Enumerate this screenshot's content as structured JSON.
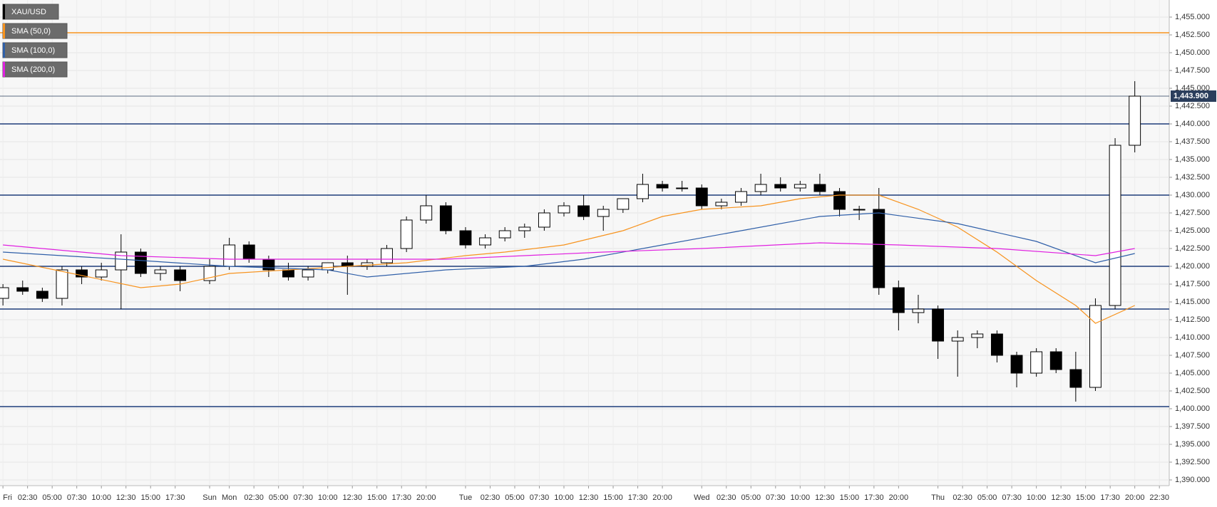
{
  "chart_data": {
    "type": "candlestick",
    "name": "XAU/USD",
    "up_color": "#ffffff",
    "down_color": "#000000",
    "x": [
      0,
      2,
      4,
      6,
      8,
      10,
      12,
      14,
      16,
      18,
      21,
      23,
      25,
      27,
      29,
      31,
      33,
      35,
      37,
      39,
      41,
      43,
      45,
      47,
      49,
      51,
      53,
      55,
      57,
      59,
      61,
      63,
      65,
      67,
      69,
      71,
      73,
      75,
      77,
      79,
      81,
      83,
      85,
      87,
      89,
      91,
      93,
      95,
      97,
      99,
      101,
      103,
      105,
      107,
      109,
      111,
      113,
      115
    ],
    "open": [
      1415.5,
      1417,
      1416.5,
      1415.5,
      1419.5,
      1418.5,
      1419.5,
      1422,
      1419,
      1419.5,
      1418,
      1420,
      1423,
      1421,
      1419.5,
      1418.5,
      1419.5,
      1420.5,
      1420,
      1420.5,
      1422.5,
      1426.5,
      1428.5,
      1425,
      1423,
      1424,
      1425,
      1425.5,
      1427.5,
      1428.5,
      1427,
      1428,
      1429.5,
      1431.5,
      1431,
      1431,
      1428.5,
      1429,
      1430.5,
      1431.5,
      1431,
      1431.5,
      1430.5,
      1428,
      1428,
      1417,
      1413.5,
      1414,
      1409.5,
      1410,
      1410.5,
      1407.5,
      1405,
      1408,
      1405.5,
      1403,
      1414.5,
      1437
    ],
    "high": [
      1417.5,
      1418,
      1417,
      1420,
      1420,
      1420.5,
      1424.5,
      1422.5,
      1420,
      1420,
      1421,
      1424,
      1423.5,
      1421.5,
      1420.5,
      1420,
      1420.5,
      1421.5,
      1421,
      1423,
      1427,
      1430,
      1429,
      1425.5,
      1424.5,
      1425.5,
      1426,
      1428,
      1429,
      1430,
      1428.5,
      1429.5,
      1433,
      1432,
      1432,
      1431.5,
      1429.5,
      1431,
      1433,
      1432.5,
      1432,
      1433,
      1431,
      1428.5,
      1431,
      1418,
      1416,
      1414.5,
      1411,
      1411,
      1411,
      1408,
      1408.5,
      1408.5,
      1408,
      1415.5,
      1438,
      1446
    ],
    "low": [
      1414.5,
      1416,
      1415,
      1414.5,
      1417.5,
      1418,
      1414,
      1418.5,
      1418,
      1416.5,
      1417.5,
      1419.5,
      1420.5,
      1418.5,
      1418,
      1418,
      1419,
      1416,
      1419.5,
      1420,
      1422,
      1426,
      1424.5,
      1422.5,
      1422.5,
      1423.5,
      1424,
      1425,
      1427,
      1426.5,
      1425,
      1427.5,
      1429,
      1430.5,
      1430.5,
      1428,
      1428,
      1428.5,
      1430,
      1430.5,
      1430.5,
      1430,
      1427,
      1426.5,
      1416,
      1411,
      1412,
      1407,
      1404.5,
      1408.5,
      1406.5,
      1403,
      1404.5,
      1405,
      1401,
      1402.5,
      1414,
      1436
    ],
    "close": [
      1417,
      1416.5,
      1415.5,
      1419.5,
      1418.5,
      1419.5,
      1422,
      1419,
      1419.5,
      1418,
      1420,
      1423,
      1421,
      1419.5,
      1418.5,
      1419.5,
      1420.5,
      1420,
      1420.5,
      1422.5,
      1426.5,
      1428.5,
      1425,
      1423,
      1424,
      1425,
      1425.5,
      1427.5,
      1428.5,
      1427,
      1428,
      1429.5,
      1431.5,
      1431,
      1431,
      1428.5,
      1429,
      1430.5,
      1431.5,
      1431,
      1431.5,
      1430.5,
      1428,
      1428,
      1417,
      1413.5,
      1414,
      1409.5,
      1410,
      1410.5,
      1407.5,
      1405,
      1408,
      1405.5,
      1403,
      1414.5,
      1437,
      1443.9
    ],
    "overlays": [
      {
        "name": "SMA (50,0)",
        "color": "#f7931e",
        "x": [
          0,
          14,
          18,
          23,
          29,
          35,
          41,
          47,
          51,
          57,
          63,
          67,
          71,
          77,
          81,
          85,
          89,
          93,
          97,
          101,
          105,
          109,
          111,
          115
        ],
        "values": [
          1421,
          1417,
          1417.5,
          1419,
          1419.5,
          1420,
          1420.5,
          1421.5,
          1422,
          1423,
          1425,
          1427,
          1428,
          1428.5,
          1429.5,
          1430,
          1430,
          1428,
          1425.5,
          1422,
          1418,
          1414.5,
          1412,
          1414.5
        ]
      },
      {
        "name": "SMA (100,0)",
        "color": "#2f5fa8",
        "x": [
          0,
          12,
          23,
          33,
          37,
          45,
          53,
          59,
          67,
          75,
          83,
          89,
          97,
          105,
          111,
          115
        ],
        "values": [
          1422,
          1421,
          1420,
          1419.5,
          1418.5,
          1419.5,
          1420,
          1421,
          1423,
          1425,
          1427,
          1427.5,
          1426,
          1423.5,
          1420.5,
          1421.8
        ]
      },
      {
        "name": "SMA (200,0)",
        "color": "#e020e0",
        "x": [
          0,
          12,
          23,
          37,
          45,
          53,
          61,
          71,
          83,
          91,
          101,
          111,
          115
        ],
        "values": [
          1423,
          1421.5,
          1421,
          1421,
          1421,
          1421.5,
          1422,
          1422.5,
          1423.3,
          1423,
          1422.5,
          1421.5,
          1422.5
        ]
      }
    ],
    "hlines": [
      {
        "value": 1452.8,
        "color": "#f7931e"
      },
      {
        "value": 1440,
        "color": "#1f3d7a"
      },
      {
        "value": 1430,
        "color": "#1f3d7a"
      },
      {
        "value": 1420,
        "color": "#1f3d7a"
      },
      {
        "value": 1414,
        "color": "#1f3d7a"
      },
      {
        "value": 1400.3,
        "color": "#1f3d7a"
      }
    ],
    "last_price": {
      "value": 1443.9,
      "label": "1,443.900",
      "color": "#2b3e5c"
    },
    "xlim": [
      -0.3,
      118.5
    ],
    "ylim": [
      1389.2,
      1457.4
    ],
    "grid": true,
    "xticks": [
      {
        "value": 0,
        "label": "Fri"
      },
      {
        "value": 2.5,
        "label": "02:30"
      },
      {
        "value": 5,
        "label": "05:00"
      },
      {
        "value": 7.5,
        "label": "07:30"
      },
      {
        "value": 10,
        "label": "10:00"
      },
      {
        "value": 12.5,
        "label": "12:30"
      },
      {
        "value": 15,
        "label": "15:00"
      },
      {
        "value": 17.5,
        "label": "17:30"
      },
      {
        "value": 21,
        "label": "Sun"
      },
      {
        "value": 23,
        "label": "Mon"
      },
      {
        "value": 25.5,
        "label": "02:30"
      },
      {
        "value": 28,
        "label": "05:00"
      },
      {
        "value": 30.5,
        "label": "07:30"
      },
      {
        "value": 33,
        "label": "10:00"
      },
      {
        "value": 35.5,
        "label": "12:30"
      },
      {
        "value": 38,
        "label": "15:00"
      },
      {
        "value": 40.5,
        "label": "17:30"
      },
      {
        "value": 43,
        "label": "20:00"
      },
      {
        "value": 47,
        "label": "Tue"
      },
      {
        "value": 49.5,
        "label": "02:30"
      },
      {
        "value": 52,
        "label": "05:00"
      },
      {
        "value": 54.5,
        "label": "07:30"
      },
      {
        "value": 57,
        "label": "10:00"
      },
      {
        "value": 59.5,
        "label": "12:30"
      },
      {
        "value": 62,
        "label": "15:00"
      },
      {
        "value": 64.5,
        "label": "17:30"
      },
      {
        "value": 67,
        "label": "20:00"
      },
      {
        "value": 71,
        "label": "Wed"
      },
      {
        "value": 73.5,
        "label": "02:30"
      },
      {
        "value": 76,
        "label": "05:00"
      },
      {
        "value": 78.5,
        "label": "07:30"
      },
      {
        "value": 81,
        "label": "10:00"
      },
      {
        "value": 83.5,
        "label": "12:30"
      },
      {
        "value": 86,
        "label": "15:00"
      },
      {
        "value": 88.5,
        "label": "17:30"
      },
      {
        "value": 91,
        "label": "20:00"
      },
      {
        "value": 95,
        "label": "Thu"
      },
      {
        "value": 97.5,
        "label": "02:30"
      },
      {
        "value": 100,
        "label": "05:00"
      },
      {
        "value": 102.5,
        "label": "07:30"
      },
      {
        "value": 105,
        "label": "10:00"
      },
      {
        "value": 107.5,
        "label": "12:30"
      },
      {
        "value": 110,
        "label": "15:00"
      },
      {
        "value": 112.5,
        "label": "17:30"
      },
      {
        "value": 115,
        "label": "20:00"
      },
      {
        "value": 117.5,
        "label": "22:30"
      }
    ],
    "yticks": [
      {
        "value": 1390,
        "label": "1,390.000"
      },
      {
        "value": 1392.5,
        "label": "1,392.500"
      },
      {
        "value": 1395,
        "label": "1,395.000"
      },
      {
        "value": 1397.5,
        "label": "1,397.500"
      },
      {
        "value": 1400,
        "label": "1,400.000"
      },
      {
        "value": 1402.5,
        "label": "1,402.500"
      },
      {
        "value": 1405,
        "label": "1,405.000"
      },
      {
        "value": 1407.5,
        "label": "1,407.500"
      },
      {
        "value": 1410,
        "label": "1,410.000"
      },
      {
        "value": 1412.5,
        "label": "1,412.500"
      },
      {
        "value": 1415,
        "label": "1,415.000"
      },
      {
        "value": 1417.5,
        "label": "1,417.500"
      },
      {
        "value": 1420,
        "label": "1,420.000"
      },
      {
        "value": 1422.5,
        "label": "1,422.500"
      },
      {
        "value": 1425,
        "label": "1,425.000"
      },
      {
        "value": 1427.5,
        "label": "1,427.500"
      },
      {
        "value": 1430,
        "label": "1,430.000"
      },
      {
        "value": 1432.5,
        "label": "1,432.500"
      },
      {
        "value": 1435,
        "label": "1,435.000"
      },
      {
        "value": 1437.5,
        "label": "1,437.500"
      },
      {
        "value": 1440,
        "label": "1,440.000"
      },
      {
        "value": 1442.5,
        "label": "1,442.500"
      },
      {
        "value": 1445,
        "label": "1,445.000"
      },
      {
        "value": 1447.5,
        "label": "1,447.500"
      },
      {
        "value": 1450,
        "label": "1,450.000"
      },
      {
        "value": 1452.5,
        "label": "1,452.500"
      },
      {
        "value": 1455,
        "label": "1,455.000"
      }
    ]
  }
}
